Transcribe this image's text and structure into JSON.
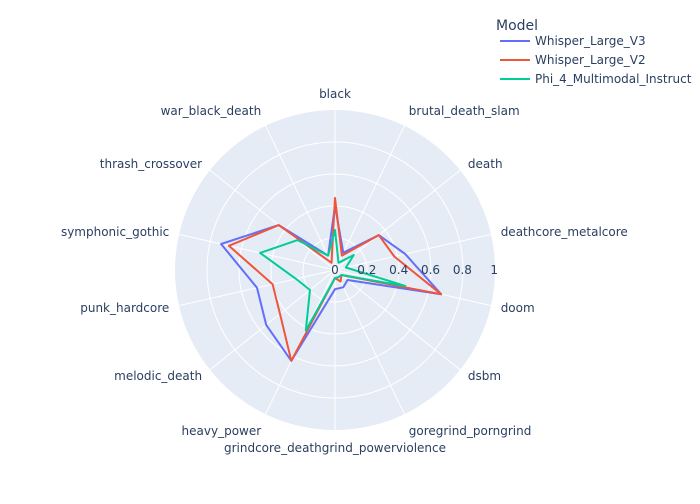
{
  "chart_data": {
    "type": "radar",
    "categories": [
      "black",
      "brutal_death_slam",
      "death",
      "deathcore_metalcore",
      "doom",
      "dsbm",
      "goregrind_porngrind",
      "grindcore_deathgrind_powerviolence",
      "heavy_power",
      "melodic_death",
      "punk_hardcore",
      "symphonic_gothic",
      "thrash_crossover",
      "war_black_death"
    ],
    "radial_ticks": [
      "0",
      "0.2",
      "0.4",
      "0.6",
      "0.8",
      "1"
    ],
    "radial_range": [
      0,
      1
    ],
    "legend": {
      "title": "Model",
      "placement": "top-right"
    },
    "series": [
      {
        "name": "Whisper_Large_V3",
        "color": "#636efa",
        "values": [
          0.4,
          0.12,
          0.35,
          0.45,
          0.68,
          0.1,
          0.12,
          0.12,
          0.63,
          0.55,
          0.5,
          0.73,
          0.45,
          0.1
        ]
      },
      {
        "name": "Whisper_Large_V2",
        "color": "#ef553b",
        "values": [
          0.45,
          0.1,
          0.35,
          0.38,
          0.68,
          0.05,
          0.08,
          0.05,
          0.63,
          0.44,
          0.4,
          0.68,
          0.45,
          0.05
        ]
      },
      {
        "name": "Phi_4_Multimodal_Instruct",
        "color": "#00cc96",
        "values": [
          0.25,
          0.05,
          0.15,
          0.07,
          0.45,
          0.05,
          0.05,
          0.05,
          0.42,
          0.2,
          0.25,
          0.48,
          0.3,
          0.1
        ]
      }
    ]
  }
}
